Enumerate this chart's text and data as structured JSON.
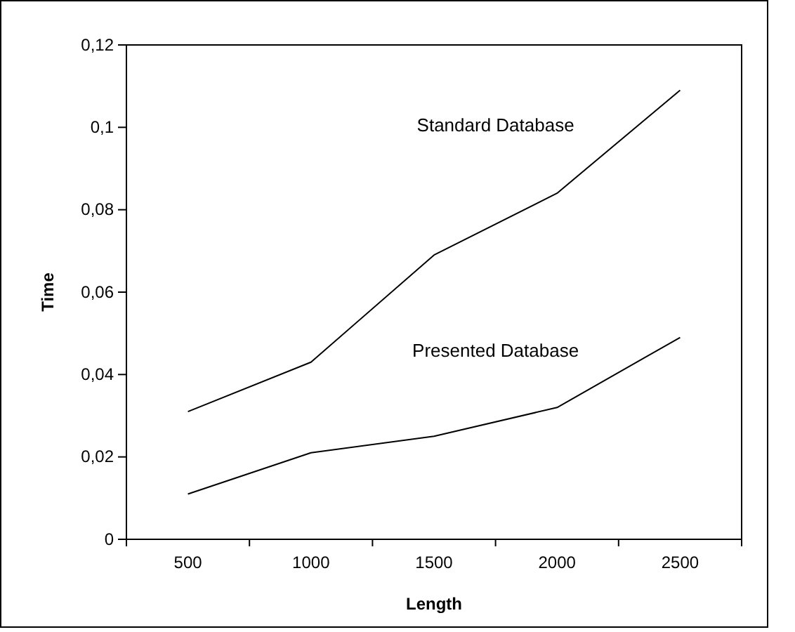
{
  "chart_data": {
    "type": "line",
    "xlabel": "Length",
    "ylabel": "Time",
    "categories": [
      "500",
      "1000",
      "1500",
      "2000",
      "2500"
    ],
    "series": [
      {
        "name": "Standard Database",
        "color": "#000000",
        "values": [
          0.031,
          0.043,
          0.069,
          0.084,
          0.109
        ]
      },
      {
        "name": "Presented Database",
        "color": "#000000",
        "values": [
          0.011,
          0.021,
          0.025,
          0.032,
          0.049
        ]
      }
    ],
    "ylim": [
      0,
      0.12
    ],
    "yticks": [
      0,
      {
        "value": 0.02,
        "label": "0,02"
      },
      {
        "value": 0.04,
        "label": "0,04"
      },
      {
        "value": 0.06,
        "label": "0,06"
      },
      {
        "value": 0.08,
        "label": "0,08"
      },
      {
        "value": 0.1,
        "label": "0,1"
      },
      {
        "value": 0.12,
        "label": "0,12"
      }
    ],
    "grid": false,
    "marker": "none",
    "line_style": "solid"
  }
}
